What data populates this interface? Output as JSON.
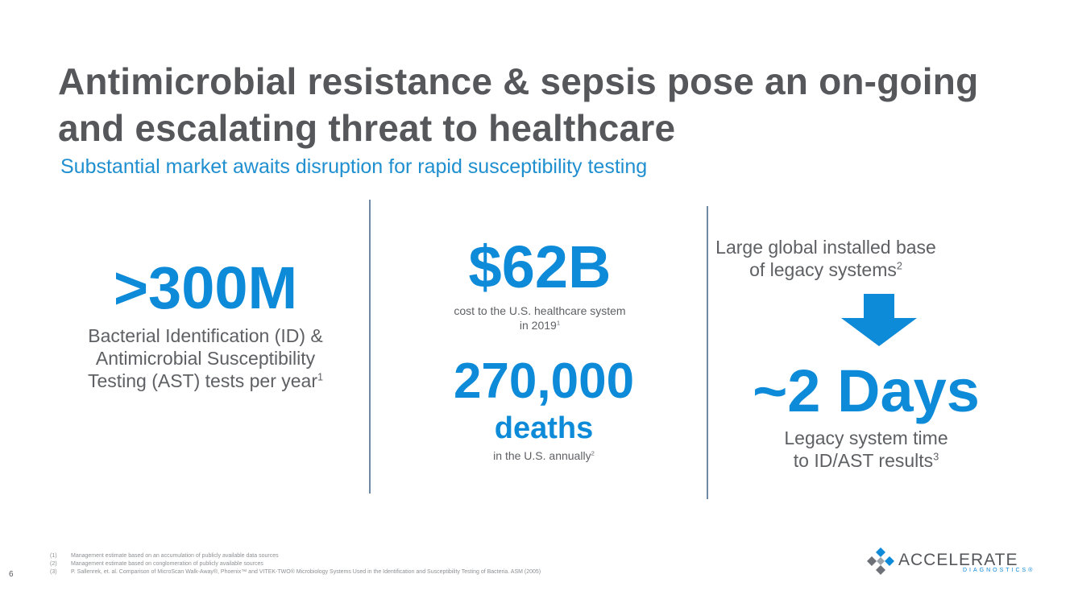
{
  "slide": {
    "title_line1": "Antimicrobial resistance & sepsis pose an on-going",
    "title_line2": "and escalating threat to healthcare",
    "subtitle": "Substantial market awaits disruption for rapid susceptibility testing",
    "page_number": "6"
  },
  "left": {
    "stat": ">300M",
    "desc_line1": "Bacterial Identification (ID) &",
    "desc_line2": "Antimicrobial Susceptibility",
    "desc_line3": "Testing (AST) tests per year",
    "footnote_ref": "1"
  },
  "middle": {
    "stat1": "$62B",
    "stat1_desc_line1": "cost to the U.S. healthcare system",
    "stat1_desc_line2": "in 2019",
    "stat1_ref": "1",
    "stat2": "270,000",
    "stat2_unit": "deaths",
    "stat2_desc": "in the U.S. annually",
    "stat2_ref": "2"
  },
  "right": {
    "intro_line1": "Large global installed base",
    "intro_line2": "of legacy systems",
    "intro_ref": "2",
    "stat": "~2 Days",
    "desc_line1": "Legacy system time",
    "desc_line2": "to ID/AST results",
    "desc_ref": "3"
  },
  "footnotes": [
    {
      "num": "(1)",
      "text": "Management estimate based on an accumulation of publicly available data sources"
    },
    {
      "num": "(2)",
      "text": "Management estimate based on conglomeration of publicly available sources"
    },
    {
      "num": "(3)",
      "text": "P. Sallenrek, et. al. Comparison of MicroScan Walk-Away®, Phoenix™ and VITEK-TWO® Microbiology Systems Used in the Identification and Susceptibility Testing of Bacteria. ASM (2005)"
    }
  ],
  "logo": {
    "name": "ACCELERATE",
    "tagline": "DIAGNOSTICS®"
  },
  "colors": {
    "accent": "#0d8ad8",
    "title": "#55575b",
    "body": "#5e6064",
    "divider": "#6e8aa3"
  }
}
